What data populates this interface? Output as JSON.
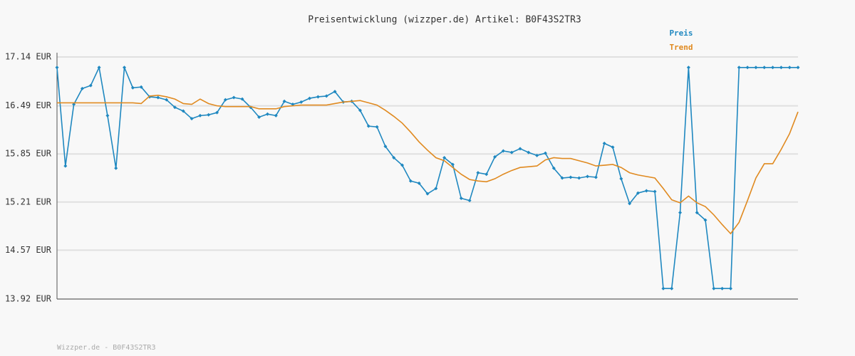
{
  "chart_data": {
    "type": "line",
    "title": "Preisentwicklung (wizzper.de) Artikel: B0F43S2TR3",
    "ylim": [
      13.92,
      17.14
    ],
    "yticks": [
      {
        "value": 13.92,
        "label": "13.92 EUR"
      },
      {
        "value": 14.57,
        "label": "14.57 EUR"
      },
      {
        "value": 15.21,
        "label": "15.21 EUR"
      },
      {
        "value": 15.85,
        "label": "15.85 EUR"
      },
      {
        "value": 16.49,
        "label": "16.49 EUR"
      },
      {
        "value": 17.14,
        "label": "17.14 EUR"
      }
    ],
    "grid": true,
    "legend": "top-right",
    "series": [
      {
        "name": "Preis",
        "color": "#1f88c0",
        "markers": true,
        "values": [
          17.0,
          15.69,
          16.51,
          16.72,
          16.76,
          17.0,
          16.36,
          15.66,
          17.0,
          16.73,
          16.74,
          16.61,
          16.6,
          16.57,
          16.47,
          16.42,
          16.32,
          16.36,
          16.37,
          16.4,
          16.57,
          16.6,
          16.58,
          16.47,
          16.34,
          16.38,
          16.36,
          16.55,
          16.51,
          16.54,
          16.59,
          16.61,
          16.62,
          16.68,
          16.54,
          16.55,
          16.43,
          16.22,
          16.21,
          15.95,
          15.8,
          15.7,
          15.49,
          15.46,
          15.32,
          15.39,
          15.8,
          15.71,
          15.26,
          15.23,
          15.6,
          15.58,
          15.81,
          15.89,
          15.87,
          15.92,
          15.87,
          15.83,
          15.86,
          15.66,
          15.53,
          15.54,
          15.53,
          15.55,
          15.54,
          15.99,
          15.94,
          15.52,
          15.19,
          15.33,
          15.36,
          15.35,
          14.06,
          14.06,
          15.07,
          17.0,
          15.07,
          14.97,
          14.06,
          14.06,
          14.06,
          17.0,
          17.0,
          17.0,
          17.0,
          17.0,
          17.0,
          17.0,
          17.0
        ]
      },
      {
        "name": "Trend",
        "color": "#e08a20",
        "markers": false,
        "values": [
          16.53,
          16.53,
          16.53,
          16.53,
          16.53,
          16.53,
          16.53,
          16.53,
          16.53,
          16.53,
          16.52,
          16.62,
          16.63,
          16.61,
          16.58,
          16.52,
          16.51,
          16.58,
          16.52,
          16.49,
          16.48,
          16.48,
          16.48,
          16.48,
          16.45,
          16.45,
          16.45,
          16.48,
          16.49,
          16.5,
          16.5,
          16.5,
          16.5,
          16.52,
          16.54,
          16.55,
          16.56,
          16.53,
          16.5,
          16.43,
          16.35,
          16.26,
          16.14,
          16.01,
          15.9,
          15.8,
          15.76,
          15.67,
          15.58,
          15.51,
          15.49,
          15.48,
          15.52,
          15.58,
          15.63,
          15.67,
          15.68,
          15.69,
          15.77,
          15.8,
          15.79,
          15.79,
          15.76,
          15.73,
          15.69,
          15.7,
          15.71,
          15.67,
          15.6,
          15.57,
          15.55,
          15.53,
          15.39,
          15.24,
          15.2,
          15.29,
          15.2,
          15.15,
          15.04,
          14.91,
          14.79,
          14.94,
          15.23,
          15.53,
          15.72,
          15.72,
          15.91,
          16.12,
          16.41
        ]
      }
    ]
  },
  "footer": "Wizzper.de - B0F43S2TR3"
}
